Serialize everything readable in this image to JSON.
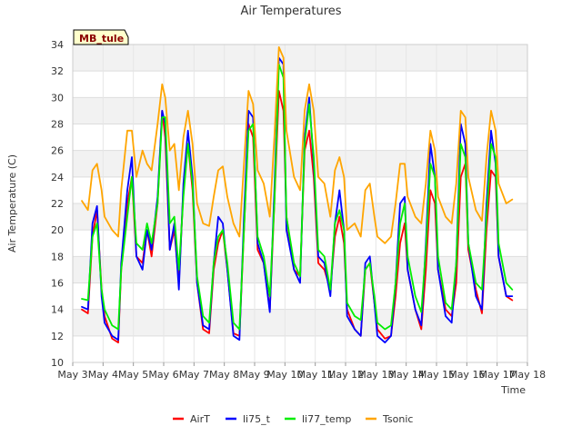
{
  "chart_data": {
    "type": "line",
    "title": "Air Temperatures",
    "xlabel": "Time",
    "ylabel": "Air Temperature (C)",
    "site_label": "MB_tule",
    "ylim": [
      10,
      34
    ],
    "yticks": [
      10,
      12,
      14,
      16,
      18,
      20,
      22,
      24,
      26,
      28,
      30,
      32,
      34
    ],
    "xlim": [
      0,
      15
    ],
    "xticks": [
      "May 3",
      "May 4",
      "May 5",
      "May 6",
      "May 7",
      "May 8",
      "May 9",
      "May 10",
      "May 11",
      "May 12",
      "May 13",
      "May 14",
      "May 15",
      "May 16",
      "May 17",
      "May 18"
    ],
    "grid": true,
    "legend_position": "bottom-center",
    "x_units": "days since May 3",
    "series": [
      {
        "name": "AirT",
        "color": "#ff0000",
        "x": [
          0.3,
          0.5,
          0.65,
          0.8,
          0.95,
          1.05,
          1.3,
          1.5,
          1.6,
          1.8,
          1.95,
          2.1,
          2.3,
          2.45,
          2.6,
          2.8,
          2.95,
          3.05,
          3.2,
          3.35,
          3.5,
          3.65,
          3.8,
          3.95,
          4.1,
          4.3,
          4.5,
          4.65,
          4.8,
          4.95,
          5.1,
          5.3,
          5.5,
          5.65,
          5.8,
          5.95,
          6.1,
          6.3,
          6.5,
          6.65,
          6.8,
          6.95,
          7.05,
          7.3,
          7.5,
          7.65,
          7.8,
          7.95,
          8.1,
          8.3,
          8.5,
          8.65,
          8.8,
          8.95,
          9.05,
          9.3,
          9.5,
          9.65,
          9.8,
          9.95,
          10.05,
          10.3,
          10.5,
          10.65,
          10.8,
          10.95,
          11.05,
          11.3,
          11.5,
          11.65,
          11.8,
          11.95,
          12.05,
          12.3,
          12.5,
          12.65,
          12.8,
          12.95,
          13.05,
          13.3,
          13.5,
          13.65,
          13.8,
          13.95,
          14.05,
          14.3,
          14.5
        ],
        "y": [
          14.0,
          13.7,
          19.5,
          21.5,
          15.5,
          13.5,
          11.8,
          11.5,
          17.0,
          22.0,
          24.0,
          18.0,
          17.5,
          20.0,
          18.0,
          22.0,
          29.0,
          27.0,
          18.5,
          20.0,
          16.0,
          23.0,
          26.5,
          23.0,
          16.0,
          12.5,
          12.2,
          17.0,
          19.0,
          20.0,
          17.0,
          12.2,
          12.0,
          20.0,
          28.0,
          27.0,
          18.5,
          17.5,
          14.0,
          22.0,
          30.5,
          29.0,
          21.0,
          17.0,
          16.5,
          26.0,
          27.5,
          24.0,
          17.5,
          17.0,
          15.5,
          19.5,
          21.0,
          19.0,
          14.0,
          12.5,
          12.0,
          17.0,
          17.5,
          14.5,
          12.5,
          11.8,
          12.0,
          15.0,
          19.0,
          20.5,
          17.0,
          14.0,
          12.5,
          17.0,
          23.0,
          22.0,
          17.0,
          14.0,
          13.5,
          16.0,
          24.0,
          25.0,
          18.5,
          15.5,
          13.7,
          20.0,
          24.5,
          24.0,
          18.0,
          15.0,
          14.7
        ]
      },
      {
        "name": "li75_t",
        "color": "#0000ff",
        "x": [
          0.3,
          0.5,
          0.65,
          0.8,
          0.95,
          1.05,
          1.3,
          1.5,
          1.6,
          1.8,
          1.95,
          2.1,
          2.3,
          2.45,
          2.6,
          2.8,
          2.95,
          3.05,
          3.2,
          3.35,
          3.5,
          3.65,
          3.8,
          3.95,
          4.1,
          4.3,
          4.5,
          4.65,
          4.8,
          4.95,
          5.1,
          5.3,
          5.5,
          5.65,
          5.8,
          5.95,
          6.1,
          6.3,
          6.5,
          6.65,
          6.8,
          6.95,
          7.05,
          7.3,
          7.5,
          7.65,
          7.8,
          7.95,
          8.1,
          8.3,
          8.5,
          8.65,
          8.8,
          8.95,
          9.05,
          9.3,
          9.5,
          9.65,
          9.8,
          9.95,
          10.05,
          10.3,
          10.5,
          10.65,
          10.8,
          10.95,
          11.05,
          11.3,
          11.5,
          11.65,
          11.8,
          11.95,
          12.05,
          12.3,
          12.5,
          12.65,
          12.8,
          12.95,
          13.05,
          13.3,
          13.5,
          13.65,
          13.8,
          13.95,
          14.05,
          14.3,
          14.5
        ],
        "y": [
          14.2,
          14.0,
          20.5,
          21.8,
          15.0,
          13.0,
          12.0,
          11.7,
          17.5,
          23.0,
          25.5,
          18.0,
          17.0,
          20.0,
          18.5,
          22.5,
          29.0,
          28.0,
          18.5,
          20.5,
          15.5,
          23.5,
          27.5,
          24.0,
          16.0,
          12.8,
          12.5,
          17.5,
          21.0,
          20.5,
          17.0,
          12.0,
          11.7,
          21.0,
          29.0,
          28.5,
          19.0,
          17.5,
          13.8,
          23.0,
          33.0,
          32.5,
          20.0,
          17.0,
          16.0,
          27.0,
          30.0,
          25.0,
          18.0,
          17.5,
          15.0,
          20.5,
          23.0,
          20.0,
          13.5,
          12.5,
          12.0,
          17.5,
          18.0,
          14.5,
          12.0,
          11.5,
          12.0,
          16.0,
          22.0,
          22.5,
          17.0,
          14.0,
          12.8,
          19.0,
          26.5,
          24.0,
          17.0,
          13.5,
          13.0,
          17.5,
          28.0,
          26.5,
          19.0,
          15.0,
          14.0,
          22.0,
          27.5,
          25.0,
          18.0,
          15.0,
          15.0
        ]
      },
      {
        "name": "li77_temp",
        "color": "#00ee00",
        "x": [
          0.3,
          0.5,
          0.65,
          0.8,
          0.95,
          1.05,
          1.3,
          1.5,
          1.6,
          1.8,
          1.95,
          2.1,
          2.3,
          2.45,
          2.6,
          2.8,
          2.95,
          3.05,
          3.2,
          3.35,
          3.5,
          3.65,
          3.8,
          3.95,
          4.1,
          4.3,
          4.5,
          4.65,
          4.8,
          4.95,
          5.1,
          5.3,
          5.5,
          5.65,
          5.8,
          5.95,
          6.1,
          6.3,
          6.5,
          6.65,
          6.8,
          6.95,
          7.05,
          7.3,
          7.5,
          7.65,
          7.8,
          7.95,
          8.1,
          8.3,
          8.5,
          8.65,
          8.8,
          8.95,
          9.05,
          9.3,
          9.5,
          9.65,
          9.8,
          9.95,
          10.05,
          10.3,
          10.5,
          10.65,
          10.8,
          10.95,
          11.05,
          11.3,
          11.5,
          11.65,
          11.8,
          11.95,
          12.05,
          12.3,
          12.5,
          12.65,
          12.8,
          12.95,
          13.05,
          13.3,
          13.5,
          13.65,
          13.8,
          13.95,
          14.05,
          14.3,
          14.5
        ],
        "y": [
          14.8,
          14.7,
          19.5,
          20.5,
          15.5,
          14.0,
          12.8,
          12.5,
          17.0,
          21.0,
          24.0,
          19.0,
          18.5,
          20.5,
          19.0,
          22.0,
          28.5,
          28.5,
          20.5,
          21.0,
          17.0,
          22.5,
          26.5,
          23.5,
          16.5,
          13.5,
          13.0,
          17.5,
          19.5,
          20.0,
          17.5,
          13.0,
          12.5,
          20.0,
          27.5,
          28.0,
          19.5,
          18.0,
          15.0,
          22.0,
          32.5,
          31.5,
          21.0,
          17.5,
          16.5,
          26.5,
          29.5,
          25.5,
          18.5,
          18.0,
          15.5,
          20.5,
          21.5,
          20.0,
          14.5,
          13.5,
          13.2,
          17.0,
          17.5,
          15.0,
          13.0,
          12.5,
          12.8,
          16.0,
          20.5,
          22.0,
          18.0,
          15.0,
          13.8,
          18.5,
          25.0,
          24.0,
          18.0,
          14.5,
          14.0,
          17.5,
          26.5,
          25.5,
          19.0,
          16.0,
          15.5,
          21.0,
          26.5,
          25.5,
          19.0,
          16.0,
          15.5
        ]
      },
      {
        "name": "Tsonic",
        "color": "#ffa500",
        "x": [
          0.3,
          0.5,
          0.65,
          0.8,
          0.95,
          1.05,
          1.3,
          1.5,
          1.6,
          1.8,
          1.95,
          2.1,
          2.3,
          2.45,
          2.6,
          2.8,
          2.95,
          3.05,
          3.2,
          3.35,
          3.5,
          3.65,
          3.8,
          3.95,
          4.1,
          4.3,
          4.5,
          4.65,
          4.8,
          4.95,
          5.1,
          5.3,
          5.5,
          5.65,
          5.8,
          5.95,
          6.1,
          6.3,
          6.5,
          6.65,
          6.8,
          6.95,
          7.05,
          7.3,
          7.5,
          7.65,
          7.8,
          7.95,
          8.1,
          8.3,
          8.5,
          8.65,
          8.8,
          8.95,
          9.05,
          9.3,
          9.5,
          9.65,
          9.8,
          9.95,
          10.05,
          10.3,
          10.5,
          10.65,
          10.8,
          10.95,
          11.05,
          11.3,
          11.5,
          11.65,
          11.8,
          11.95,
          12.05,
          12.3,
          12.5,
          12.65,
          12.8,
          12.95,
          13.05,
          13.3,
          13.5,
          13.65,
          13.8,
          13.95,
          14.05,
          14.3,
          14.5
        ],
        "y": [
          22.2,
          21.5,
          24.5,
          25.0,
          23.0,
          21.0,
          20.0,
          19.5,
          23.0,
          27.5,
          27.5,
          24.0,
          26.0,
          25.0,
          24.5,
          28.0,
          31.0,
          30.0,
          26.0,
          26.5,
          23.0,
          27.0,
          29.0,
          26.5,
          22.0,
          20.5,
          20.3,
          22.5,
          24.5,
          24.8,
          22.5,
          20.5,
          19.5,
          25.0,
          30.5,
          29.5,
          24.5,
          23.5,
          21.0,
          27.0,
          33.8,
          33.0,
          27.5,
          24.0,
          23.0,
          29.0,
          31.0,
          29.0,
          24.0,
          23.5,
          21.0,
          24.5,
          25.5,
          24.0,
          20.0,
          20.5,
          19.5,
          23.0,
          23.5,
          21.0,
          19.5,
          19.0,
          19.5,
          22.0,
          25.0,
          25.0,
          22.5,
          21.0,
          20.5,
          23.5,
          27.5,
          26.0,
          22.5,
          21.0,
          20.5,
          23.5,
          29.0,
          28.5,
          24.0,
          21.5,
          20.7,
          25.5,
          29.0,
          27.5,
          23.5,
          22.0,
          22.3
        ]
      }
    ]
  }
}
